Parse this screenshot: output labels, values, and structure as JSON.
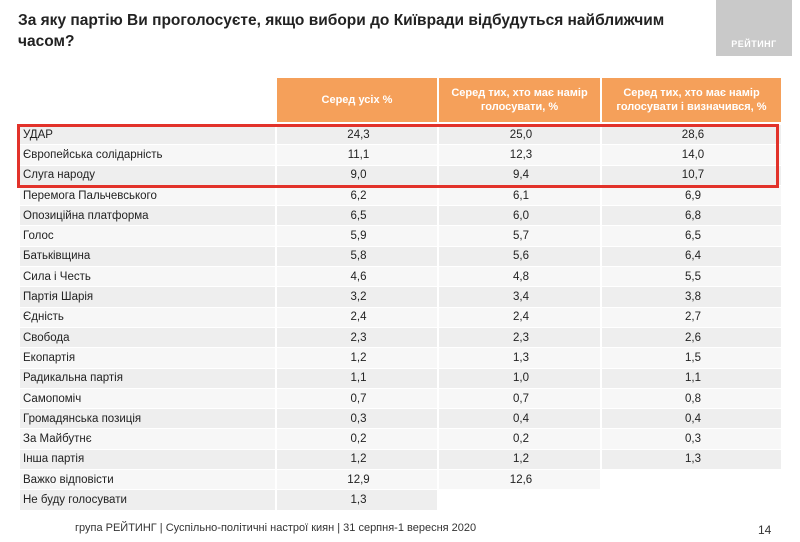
{
  "header": {
    "title": "За яку партію Ви проголосуєте, якщо вибори до Київради відбудуться найближчим часом?",
    "logo": "РЕЙТИНГ"
  },
  "table": {
    "columns": [
      "Серед усіх %",
      "Серед тих, хто має намір голосувати, %",
      "Серед тих, хто має намір голосувати і визначився, %"
    ],
    "rows": [
      [
        "УДАР",
        "24,3",
        "25,0",
        "28,6"
      ],
      [
        "Європейська солідарність",
        "11,1",
        "12,3",
        "14,0"
      ],
      [
        "Слуга народу",
        "9,0",
        "9,4",
        "10,7"
      ],
      [
        "Перемога Пальчевського",
        "6,2",
        "6,1",
        "6,9"
      ],
      [
        "Опозиційна платформа",
        "6,5",
        "6,0",
        "6,8"
      ],
      [
        "Голос",
        "5,9",
        "5,7",
        "6,5"
      ],
      [
        "Батьківщина",
        "5,8",
        "5,6",
        "6,4"
      ],
      [
        "Сила і Честь",
        "4,6",
        "4,8",
        "5,5"
      ],
      [
        "Партія Шарія",
        "3,2",
        "3,4",
        "3,8"
      ],
      [
        "Єдність",
        "2,4",
        "2,4",
        "2,7"
      ],
      [
        "Свобода",
        "2,3",
        "2,3",
        "2,6"
      ],
      [
        "Екопартія",
        "1,2",
        "1,3",
        "1,5"
      ],
      [
        "Радикальна партія",
        "1,1",
        "1,0",
        "1,1"
      ],
      [
        "Самопоміч",
        "0,7",
        "0,7",
        "0,8"
      ],
      [
        "Громадянська позиція",
        "0,3",
        "0,4",
        "0,4"
      ],
      [
        "За Майбутнє",
        "0,2",
        "0,2",
        "0,3"
      ],
      [
        "Інша партія",
        "1,2",
        "1,2",
        "1,3"
      ],
      [
        "Важко відповісти",
        "12,9",
        "12,6"
      ],
      [
        "Не буду голосувати",
        "1,3"
      ]
    ]
  },
  "footer": {
    "text": "група РЕЙТИНГ  |  Суспільно-політичні настрої киян | 31 серпня-1 вересня 2020",
    "page": "14"
  }
}
